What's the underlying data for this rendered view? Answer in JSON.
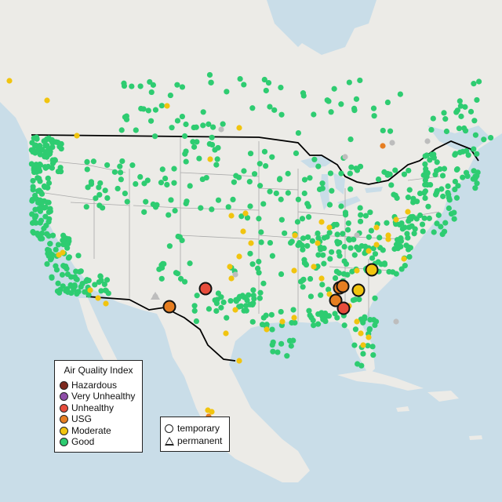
{
  "legend": {
    "title": "Air Quality Index",
    "categories": [
      {
        "label": "Hazardous",
        "color": "#7e2a1f"
      },
      {
        "label": "Very Unhealthy",
        "color": "#8f4fa8"
      },
      {
        "label": "Unhealthy",
        "color": "#e74c3c"
      },
      {
        "label": "USG",
        "color": "#e67e22"
      },
      {
        "label": "Moderate",
        "color": "#f1c40f"
      },
      {
        "label": "Good",
        "color": "#2ecc71"
      }
    ]
  },
  "monitor_types": {
    "temporary_label": "temporary",
    "permanent_label": "permanent"
  },
  "colors": {
    "ocean": "#c9dde8",
    "land": "#ecebe7",
    "mexico_land": "#f0efeb",
    "no_data": "#bdbdbd"
  }
}
